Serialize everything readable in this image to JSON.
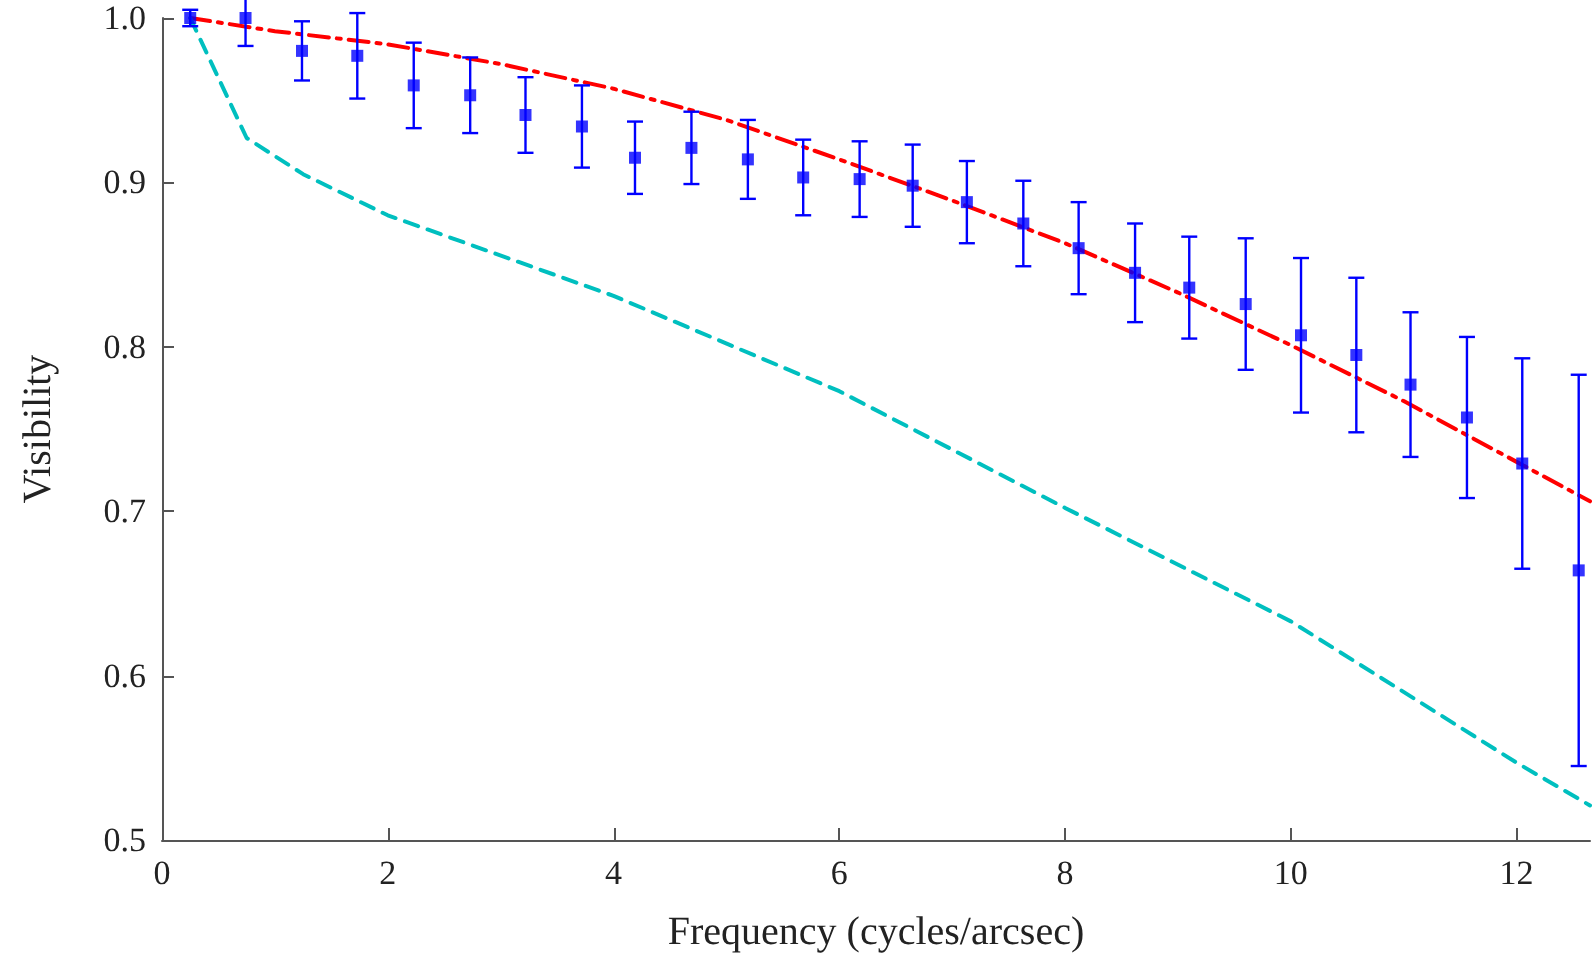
{
  "chart_data": {
    "type": "scatter",
    "xlabel": "Frequency (cycles/arcsec)",
    "ylabel": "Visibility",
    "xlim": [
      0,
      12.65
    ],
    "xticks": [
      0,
      2,
      4,
      6,
      8,
      10,
      12
    ],
    "ylim": [
      0.5,
      1.0
    ],
    "yticks": [
      {
        "value": 0.5,
        "label": "0.5"
      },
      {
        "value": 0.6,
        "label": "0.6"
      },
      {
        "value": 0.7,
        "label": "0.7"
      },
      {
        "value": 0.8,
        "label": "0.8"
      },
      {
        "value": 0.9,
        "label": "0.9"
      },
      {
        "value": 1.0,
        "label": "1.0"
      }
    ],
    "grid": false,
    "series": [
      {
        "type": "line",
        "color": "#ff0000",
        "line_style": "dashdot",
        "marker": "none",
        "x": [
          0.25,
          1,
          2,
          3,
          4,
          5,
          6,
          7,
          8,
          9,
          10,
          11,
          12,
          12.65
        ],
        "values": [
          1.0,
          0.992,
          0.984,
          0.972,
          0.957,
          0.938,
          0.914,
          0.889,
          0.863,
          0.833,
          0.801,
          0.767,
          0.73,
          0.706
        ]
      },
      {
        "type": "line",
        "color": "#00bfbf",
        "line_style": "dashed",
        "marker": "none",
        "x": [
          0.25,
          0.75,
          1.25,
          2,
          4,
          6,
          8,
          10,
          12,
          12.65
        ],
        "values": [
          1.0,
          0.927,
          0.905,
          0.88,
          0.831,
          0.773,
          0.702,
          0.633,
          0.547,
          0.521
        ]
      },
      {
        "color": "#0000ff",
        "marker": "square",
        "x": [
          0.25,
          0.74,
          1.24,
          1.73,
          2.23,
          2.73,
          3.22,
          3.72,
          4.19,
          4.69,
          5.19,
          5.68,
          6.18,
          6.65,
          7.13,
          7.63,
          8.12,
          8.62,
          9.1,
          9.6,
          10.09,
          10.58,
          11.06,
          11.56,
          12.05,
          12.55
        ],
        "values": [
          1.0,
          1.0,
          0.98,
          0.977,
          0.959,
          0.953,
          0.941,
          0.934,
          0.915,
          0.921,
          0.914,
          0.903,
          0.902,
          0.898,
          0.888,
          0.875,
          0.86,
          0.845,
          0.836,
          0.826,
          0.807,
          0.795,
          0.777,
          0.757,
          0.729,
          0.664
        ],
        "errors": [
          0.005,
          0.017,
          0.018,
          0.026,
          0.026,
          0.023,
          0.023,
          0.025,
          0.022,
          0.022,
          0.024,
          0.023,
          0.023,
          0.025,
          0.025,
          0.026,
          0.028,
          0.03,
          0.031,
          0.04,
          0.047,
          0.047,
          0.044,
          0.049,
          0.064,
          0.119
        ]
      }
    ]
  }
}
